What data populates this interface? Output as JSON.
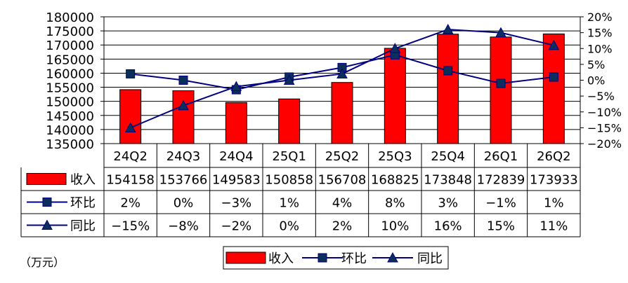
{
  "chart_data": {
    "type": "bar",
    "categories": [
      "24Q2",
      "24Q3",
      "24Q4",
      "25Q1",
      "25Q2",
      "25Q3",
      "25Q4",
      "26Q1",
      "26Q2"
    ],
    "series": [
      {
        "name": "收入",
        "type": "bar",
        "axis": "left",
        "color": "#ff0000",
        "values": [
          154158,
          153766,
          149583,
          150858,
          156708,
          168825,
          173848,
          172839,
          173933
        ]
      },
      {
        "name": "环比",
        "type": "line",
        "marker": "square",
        "axis": "right",
        "color": "#000080",
        "values": [
          2,
          0,
          -3,
          1,
          4,
          8,
          3,
          -1,
          1
        ]
      },
      {
        "name": "同比",
        "type": "line",
        "marker": "triangle",
        "axis": "right",
        "color": "#000080",
        "values": [
          -15,
          -8,
          -2,
          0,
          2,
          10,
          16,
          15,
          11
        ]
      }
    ],
    "table_rows": [
      {
        "label": "收入",
        "cells": [
          "154158",
          "153766",
          "149583",
          "150858",
          "156708",
          "168825",
          "173848",
          "172839",
          "173933"
        ]
      },
      {
        "label": "环比",
        "cells": [
          "2%",
          "0%",
          "−3%",
          "1%",
          "4%",
          "8%",
          "3%",
          "−1%",
          "1%"
        ]
      },
      {
        "label": "同比",
        "cells": [
          "−15%",
          "−8%",
          "−2%",
          "0%",
          "2%",
          "10%",
          "16%",
          "15%",
          "11%"
        ]
      }
    ],
    "y_left": {
      "min": 135000,
      "max": 180000,
      "step": 5000
    },
    "y_right": {
      "min": -20,
      "max": 20,
      "step": 5
    },
    "legend_position": "bottom",
    "grid": true,
    "unit_label": "（万元）"
  }
}
